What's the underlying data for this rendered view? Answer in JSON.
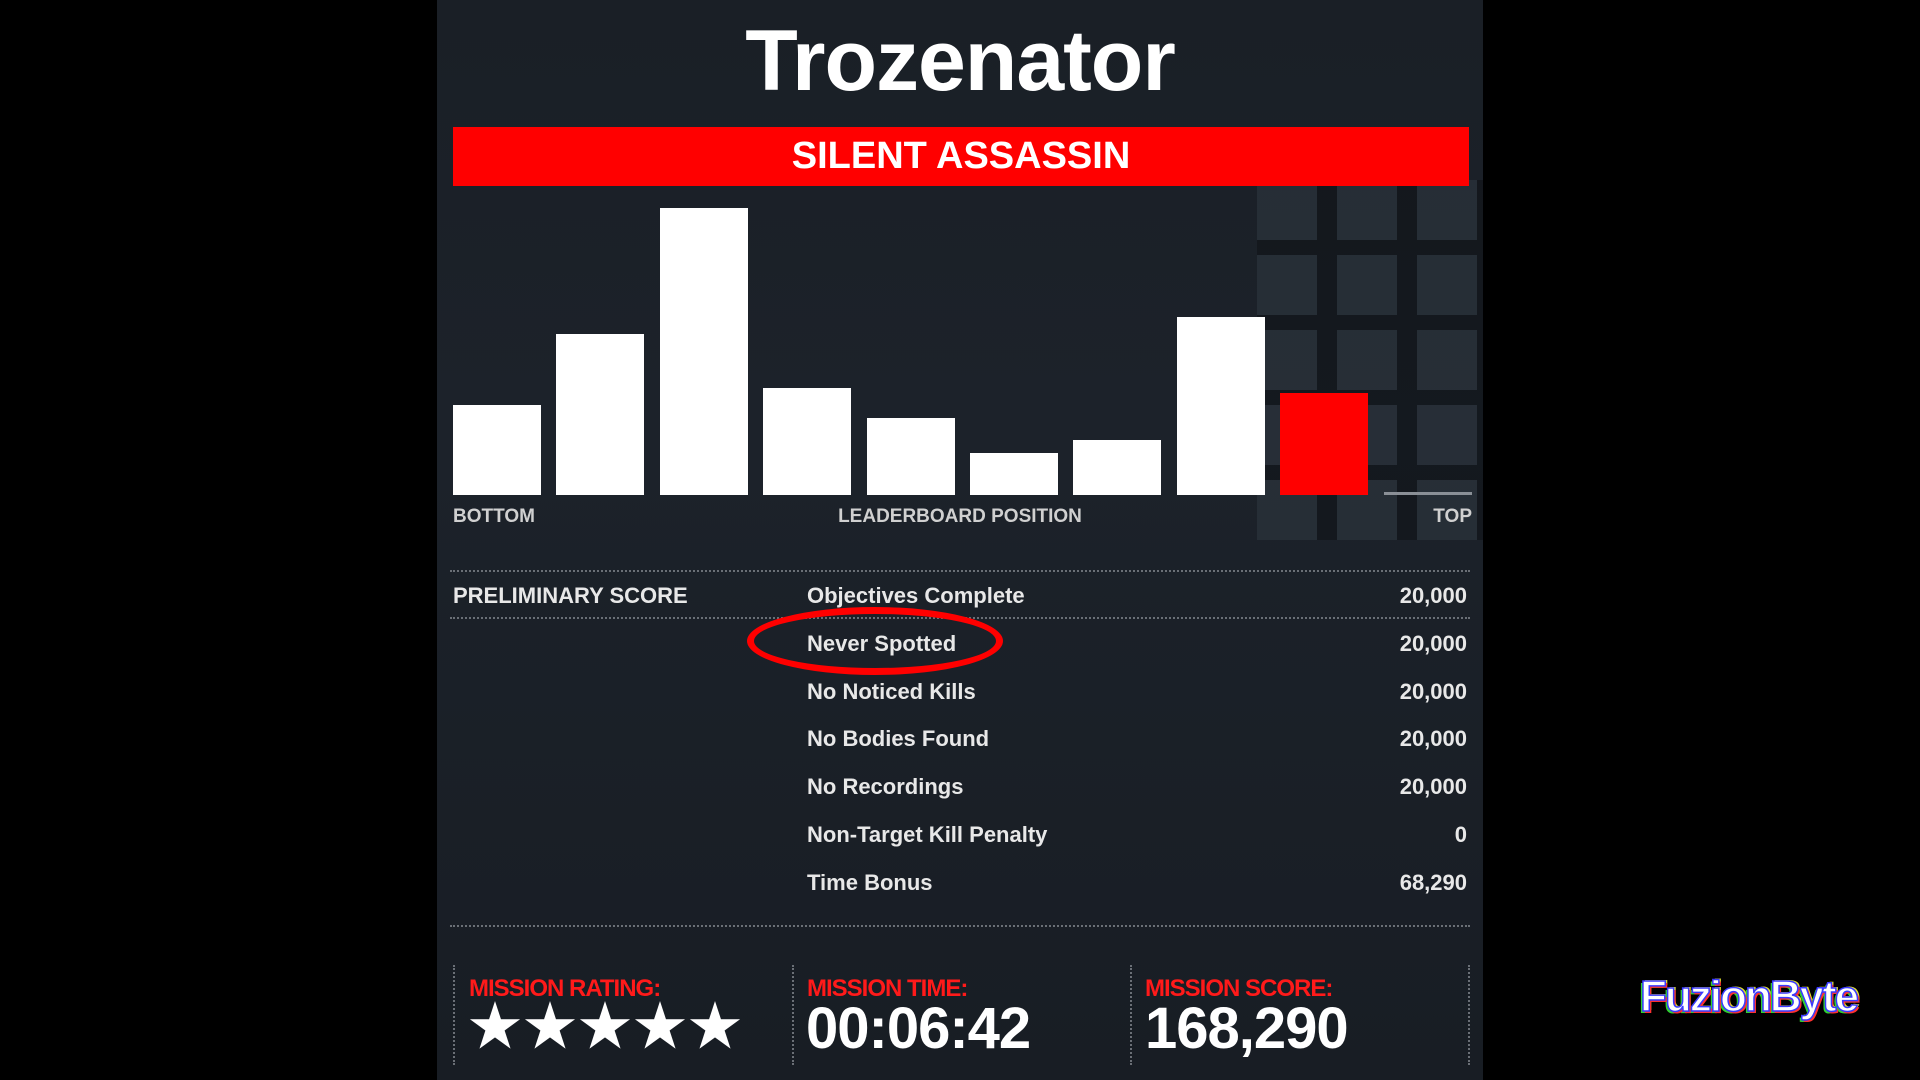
{
  "header": {
    "player_name": "Trozenator",
    "rating_title": "SILENT ASSASSIN"
  },
  "colors": {
    "accent": "#ff0000",
    "bar": "#ffffff",
    "background": "#1a1f26"
  },
  "chart_data": {
    "type": "bar",
    "xlabel": "LEADERBOARD POSITION",
    "x_left_label": "BOTTOM",
    "x_right_label": "TOP",
    "values": [
      90,
      161,
      287,
      107,
      77,
      42,
      55,
      178,
      102,
      0
    ],
    "highlight_index": 8,
    "grid": false
  },
  "score": {
    "section_label": "PRELIMINARY SCORE",
    "rows": [
      {
        "name": "Objectives Complete",
        "value": "20,000"
      },
      {
        "name": "Never Spotted",
        "value": "20,000"
      },
      {
        "name": "No Noticed Kills",
        "value": "20,000"
      },
      {
        "name": "No Bodies Found",
        "value": "20,000"
      },
      {
        "name": "No Recordings",
        "value": "20,000"
      },
      {
        "name": "Non-Target Kill Penalty",
        "value": "0"
      },
      {
        "name": "Time Bonus",
        "value": "68,290"
      }
    ],
    "highlighted_row": 1
  },
  "summary": {
    "rating_label": "MISSION RATING:",
    "rating_stars": 5,
    "time_label": "MISSION TIME:",
    "time_value": "00:06:42",
    "score_label": "MISSION SCORE:",
    "score_value": "168,290"
  },
  "watermark": "FuzionByte"
}
